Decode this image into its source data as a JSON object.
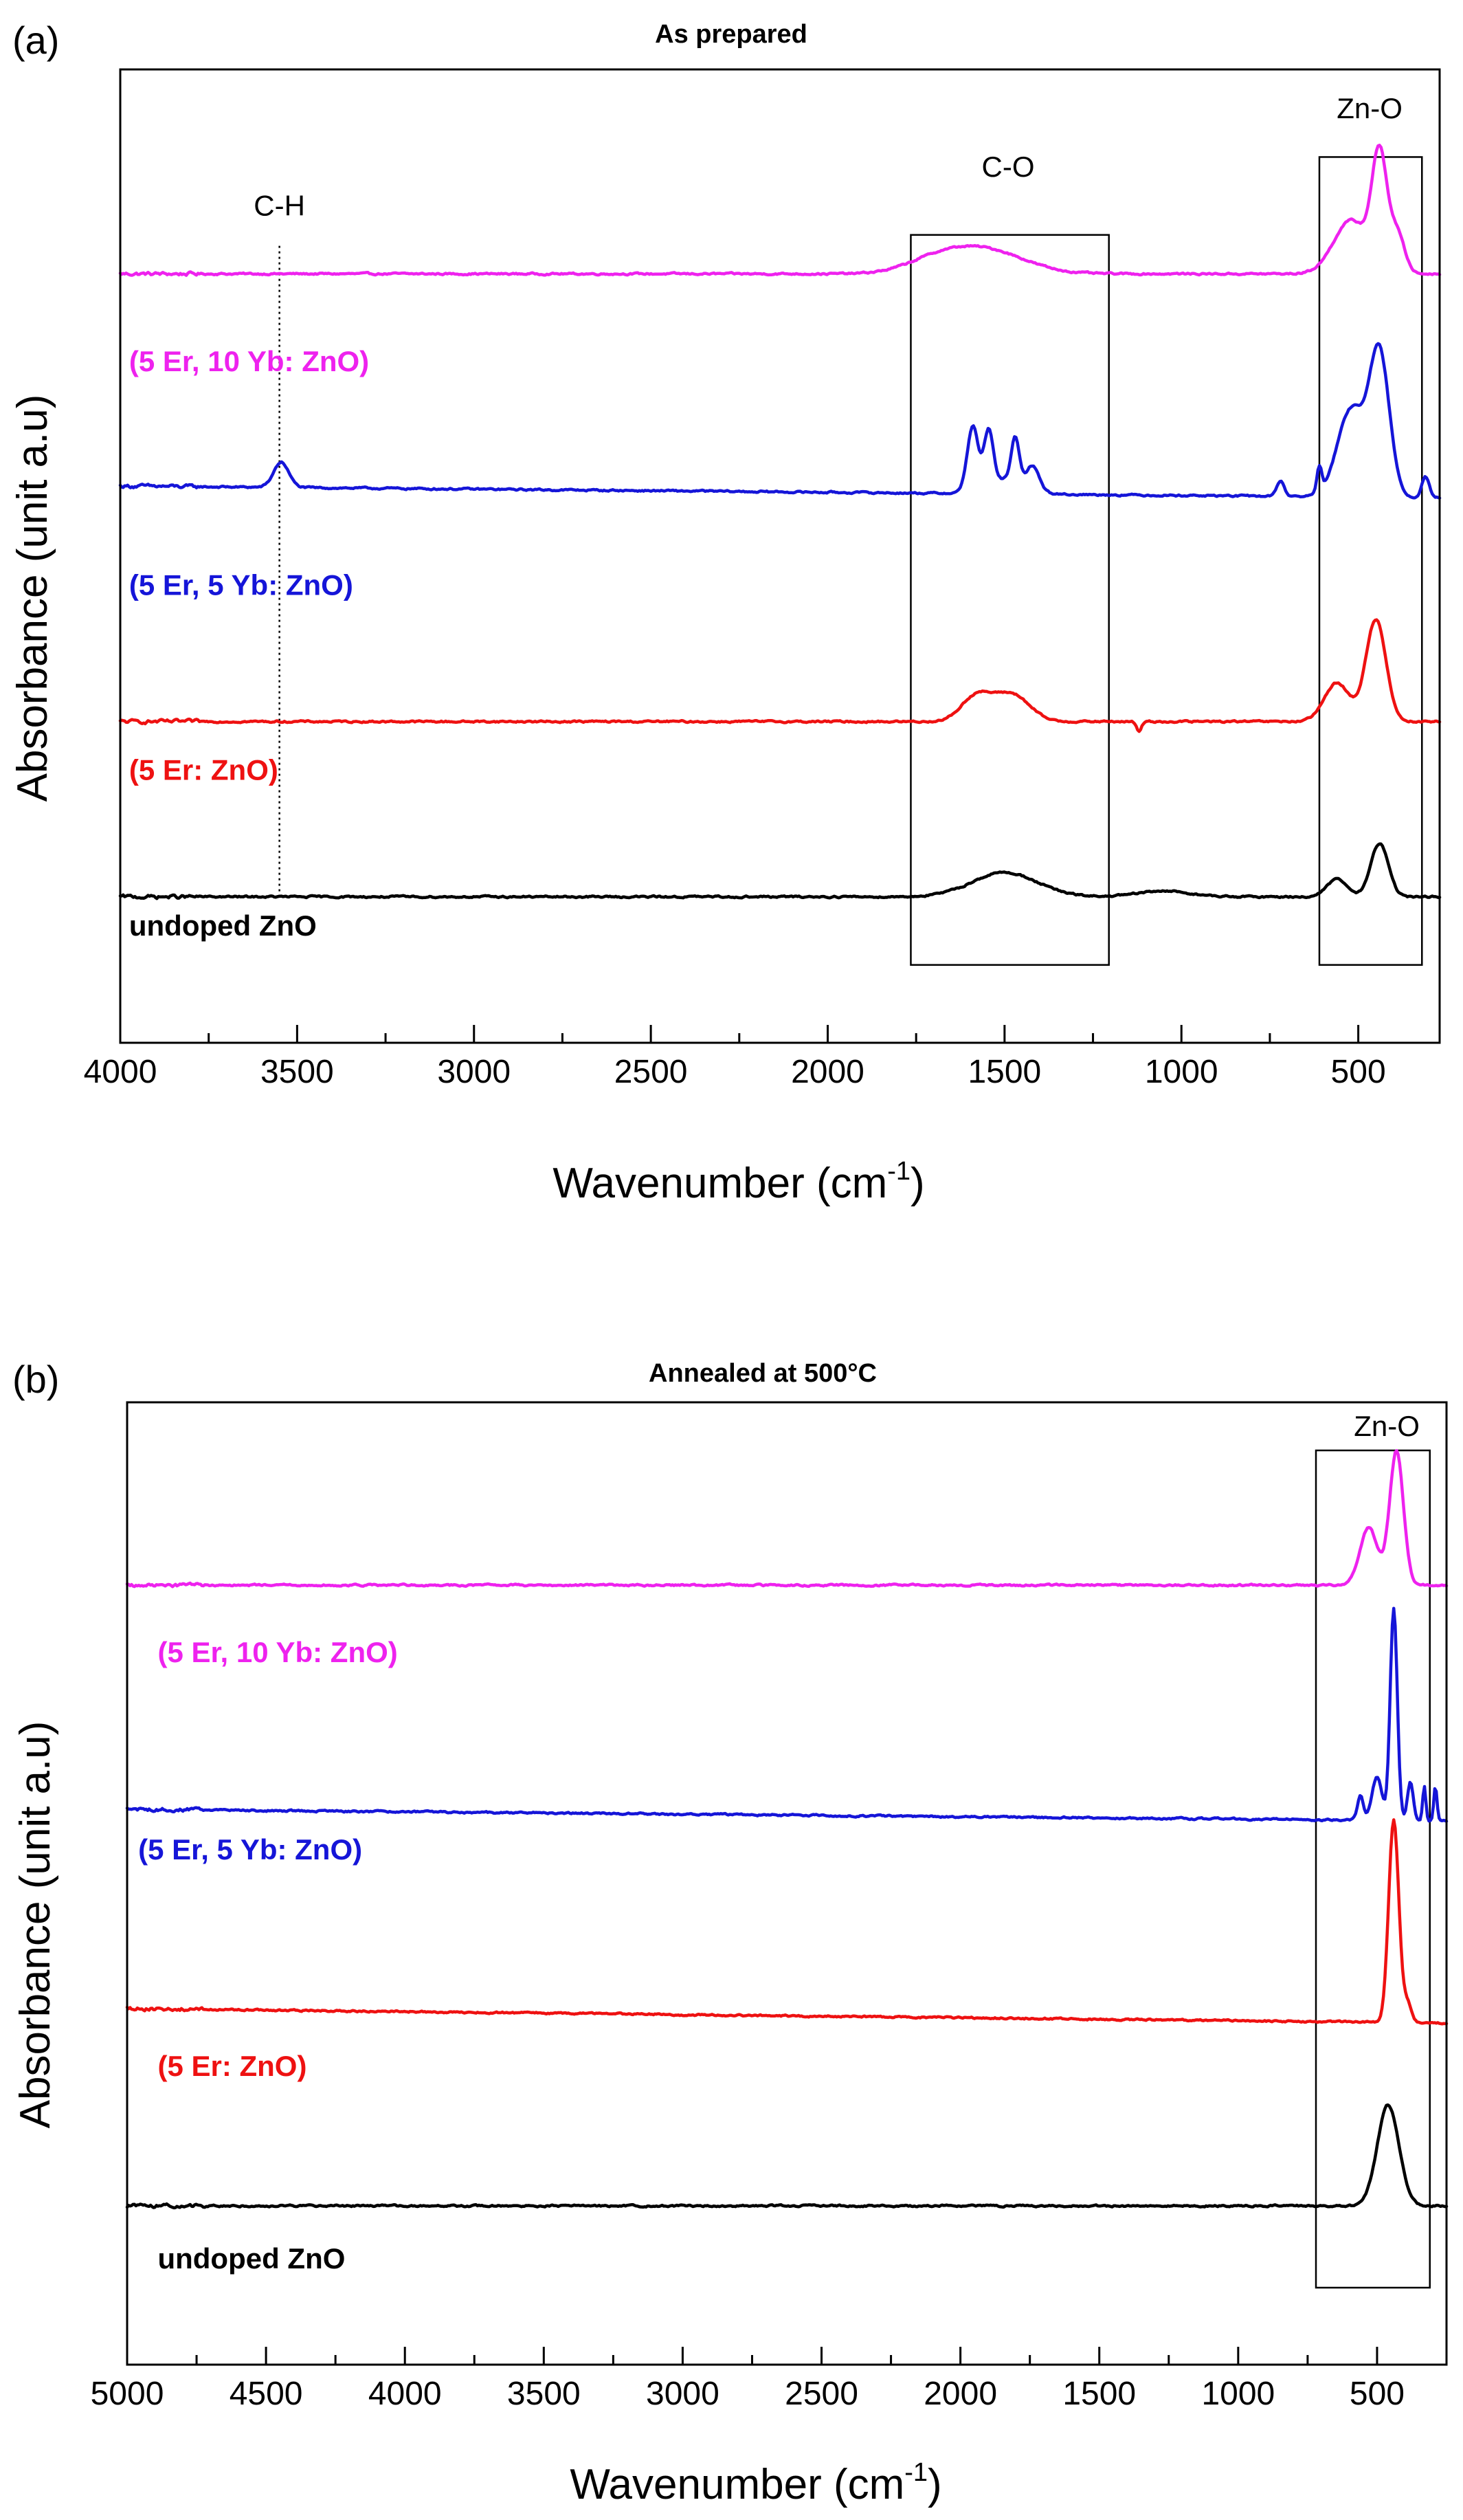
{
  "figure": {
    "panels": [
      "panel_a",
      "panel_b"
    ]
  },
  "panel_a": {
    "letter": "(a)",
    "chart_data": {
      "type": "line",
      "title": "As prepared",
      "xlabel": "Wavenumber (cm",
      "xlabel_sup": "-1",
      "xlabel_close": ")",
      "ylabel": "Absorbance (unit a.u)",
      "xlim": [
        4000,
        270
      ],
      "ylim": [
        0,
        100
      ],
      "x_reversed": true,
      "grid": false,
      "legend": "inline labels",
      "x_ticks": [
        4000,
        3500,
        3000,
        2500,
        2000,
        1500,
        1000,
        500
      ],
      "x_tick_labels": [
        "4000",
        "3500",
        "3000",
        "2500",
        "2000",
        "1500",
        "1000",
        "500"
      ],
      "series": [
        {
          "name": "(5 Er, 10 Yb: ZnO)",
          "color": "#ee22ee",
          "baseline": 79,
          "label_pos": [
            3975,
            69
          ],
          "peaks": [
            {
              "x": 1560,
              "h": 2.5,
              "w": 160
            },
            {
              "x": 1700,
              "h": 1.0,
              "w": 120
            },
            {
              "x": 520,
              "h": 5.5,
              "w": 70
            },
            {
              "x": 440,
              "h": 11.5,
              "w": 30
            },
            {
              "x": 390,
              "h": 4.0,
              "w": 30
            }
          ]
        },
        {
          "name": "(5 Er, 5 Yb: ZnO)",
          "color": "#1515d8",
          "baseline": 56,
          "slope": 1.2,
          "label_pos": [
            3975,
            46
          ],
          "peaks": [
            {
              "x": 3545,
              "h": 2.6,
              "w": 30
            },
            {
              "x": 1590,
              "h": 6.5,
              "w": 22
            },
            {
              "x": 1545,
              "h": 5.5,
              "w": 18
            },
            {
              "x": 1470,
              "h": 4.5,
              "w": 16
            },
            {
              "x": 1420,
              "h": 2.4,
              "w": 25
            },
            {
              "x": 1500,
              "h": 1.5,
              "w": 80
            },
            {
              "x": 720,
              "h": 1.6,
              "w": 15
            },
            {
              "x": 610,
              "h": 2.6,
              "w": 10
            },
            {
              "x": 520,
              "h": 9.0,
              "w": 55
            },
            {
              "x": 440,
              "h": 14.5,
              "w": 40
            },
            {
              "x": 310,
              "h": 2.2,
              "w": 15
            }
          ]
        },
        {
          "name": "(5 Er: ZnO)",
          "color": "#ee1111",
          "baseline": 33,
          "label_pos": [
            3975,
            27
          ],
          "peaks": [
            {
              "x": 1580,
              "h": 2.6,
              "w": 60
            },
            {
              "x": 1480,
              "h": 2.8,
              "w": 70
            },
            {
              "x": 1120,
              "h": -1.0,
              "w": 10
            },
            {
              "x": 560,
              "h": 4.0,
              "w": 50
            },
            {
              "x": 450,
              "h": 10.5,
              "w": 40
            }
          ]
        },
        {
          "name": "undoped ZnO",
          "color": "#000000",
          "baseline": 15,
          "label_pos": [
            3975,
            11
          ],
          "peaks": [
            {
              "x": 1500,
              "h": 2.5,
              "w": 130
            },
            {
              "x": 1050,
              "h": 0.6,
              "w": 100
            },
            {
              "x": 560,
              "h": 1.8,
              "w": 40
            },
            {
              "x": 440,
              "h": 5.5,
              "w": 35
            }
          ]
        }
      ],
      "annotations": [
        {
          "text": "C-H",
          "x": 3550,
          "y": 85
        },
        {
          "text": "C-O",
          "x": 1490,
          "y": 89
        },
        {
          "text": "Zn-O",
          "x": 468,
          "y": 95
        }
      ],
      "dotted_line": {
        "x": 3550,
        "y_from": 15,
        "y_to": 82
      },
      "boxes": [
        {
          "x0": 1765,
          "x1": 1205,
          "y0": 8,
          "y1": 83
        },
        {
          "x0": 610,
          "x1": 320,
          "y0": 8,
          "y1": 91
        }
      ]
    }
  },
  "panel_b": {
    "letter": "(b)",
    "chart_data": {
      "type": "line",
      "title": "Annealed at 500°C",
      "xlabel": "Wavenumber (cm",
      "xlabel_sup": "-1",
      "xlabel_close": ")",
      "ylabel": "Absorbance (unit a.u)",
      "xlim": [
        5000,
        250
      ],
      "ylim": [
        0,
        100
      ],
      "x_reversed": true,
      "grid": false,
      "legend": "inline labels",
      "x_ticks": [
        5000,
        4500,
        4000,
        3500,
        3000,
        2500,
        2000,
        1500,
        1000,
        500
      ],
      "x_tick_labels": [
        "5000",
        "4500",
        "4000",
        "3500",
        "3000",
        "2500",
        "2000",
        "1500",
        "1000",
        "500"
      ],
      "series": [
        {
          "name": "(5 Er, 10 Yb: ZnO)",
          "color": "#ee22ee",
          "baseline": 81,
          "label_pos": [
            4890,
            73
          ],
          "peaks": [
            {
              "x": 530,
              "h": 6.0,
              "w": 45
            },
            {
              "x": 430,
              "h": 14.0,
              "w": 35
            }
          ]
        },
        {
          "name": "(5 Er, 5 Yb: ZnO)",
          "color": "#1515d8",
          "baseline": 56.5,
          "slope": 1.2,
          "label_pos": [
            4960,
            52.5
          ],
          "peaks": [
            {
              "x": 560,
              "h": 2.5,
              "w": 15
            },
            {
              "x": 500,
              "h": 4.5,
              "w": 25
            },
            {
              "x": 440,
              "h": 22.0,
              "w": 18
            },
            {
              "x": 380,
              "h": 4.0,
              "w": 15
            },
            {
              "x": 330,
              "h": 3.5,
              "w": 8
            },
            {
              "x": 290,
              "h": 3.5,
              "w": 8
            }
          ]
        },
        {
          "name": "(5 Er: ZnO)",
          "color": "#ee1111",
          "baseline": 35.5,
          "slope": 1.5,
          "label_pos": [
            4890,
            30
          ],
          "peaks": [
            {
              "x": 440,
              "h": 21.0,
              "w": 26
            },
            {
              "x": 390,
              "h": 2.0,
              "w": 20
            }
          ]
        },
        {
          "name": "undoped ZnO",
          "color": "#000000",
          "baseline": 16.5,
          "label_pos": [
            4890,
            10
          ],
          "peaks": [
            {
              "x": 460,
              "h": 10.5,
              "w": 55
            }
          ]
        }
      ],
      "annotations": [
        {
          "text": "Zn-O",
          "x": 465,
          "y": 96.5
        }
      ],
      "boxes": [
        {
          "x0": 720,
          "x1": 310,
          "y0": 8,
          "y1": 95
        }
      ]
    }
  }
}
